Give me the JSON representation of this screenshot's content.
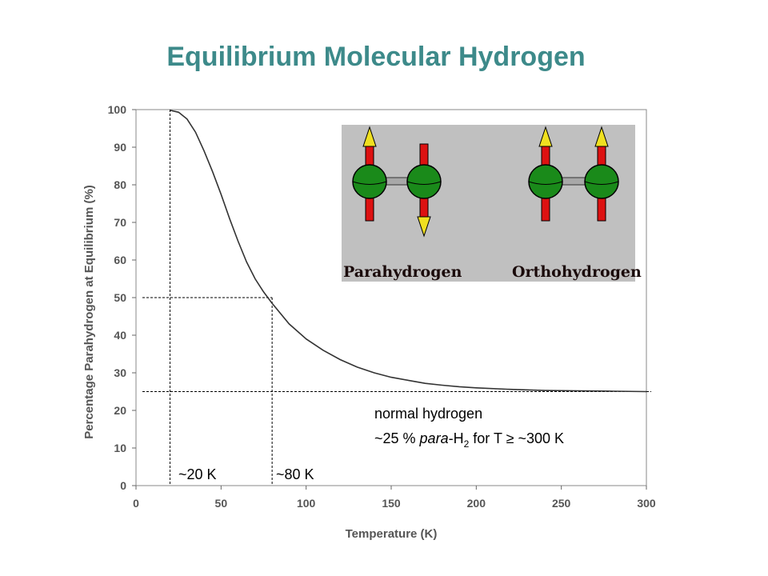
{
  "slide": {
    "title": "Equilibrium Molecular Hydrogen"
  },
  "chart_data": {
    "type": "line",
    "title": "",
    "xlabel": "Temperature (K)",
    "ylabel": "Percentage Parahydrogen at Equilibrium (%)",
    "xlim": [
      0,
      300
    ],
    "ylim": [
      0,
      100
    ],
    "x_ticks": [
      "0",
      "50",
      "100",
      "150",
      "200",
      "250",
      "300"
    ],
    "y_ticks": [
      "0",
      "10",
      "20",
      "30",
      "40",
      "50",
      "60",
      "70",
      "80",
      "90",
      "100"
    ],
    "grid": false,
    "series": [
      {
        "x": [
          20,
          25,
          30,
          35,
          40,
          45,
          50,
          55,
          60,
          65,
          70,
          75,
          80,
          90,
          100,
          110,
          120,
          130,
          140,
          150,
          160,
          170,
          180,
          190,
          200,
          220,
          240,
          260,
          280,
          300
        ],
        "y": [
          99.8,
          99.3,
          97.5,
          94.0,
          89.0,
          83.5,
          77.5,
          71.0,
          65.0,
          59.5,
          55.0,
          51.5,
          48.5,
          43.0,
          39.0,
          36.0,
          33.5,
          31.5,
          30.0,
          28.8,
          28.0,
          27.2,
          26.7,
          26.3,
          26.0,
          25.6,
          25.3,
          25.2,
          25.1,
          25.0
        ]
      }
    ],
    "reference_lines": {
      "vertical_x": [
        20,
        80
      ],
      "horizontal_y": [
        50,
        25
      ]
    },
    "annotations": {
      "t20": "~20 K",
      "t80": "~80 K",
      "normal_line1": "normal hydrogen",
      "normal_prefix": "~25 % ",
      "normal_italic": "para",
      "normal_h": "-H",
      "normal_sub": "2",
      "normal_suffix": " for T ≥ ~300 K"
    },
    "inset": {
      "left_label": "Parahydrogen",
      "right_label": "Orthohydrogen",
      "background": "#c0c0c0",
      "atom_color": "#1a8a1a",
      "spin_shaft_color": "#dd1111",
      "spin_head_color": "#f0e020"
    }
  }
}
